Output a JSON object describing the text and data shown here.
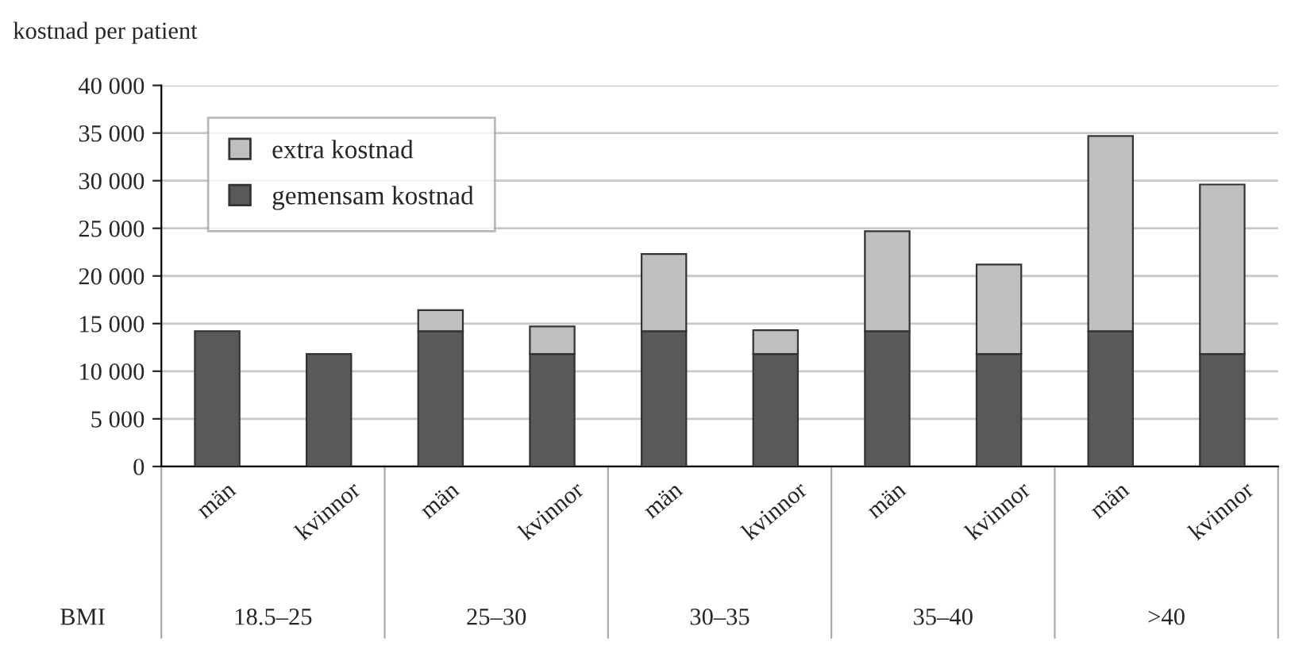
{
  "chart_data": {
    "type": "bar",
    "stacked": true,
    "ylabel": "kostnad per patient",
    "categories": [
      "män",
      "kvinnor",
      "män",
      "kvinnor",
      "män",
      "kvinnor",
      "män",
      "kvinnor",
      "män",
      "kvinnor"
    ],
    "series": [
      {
        "name": "gemensam kostnad",
        "color": "#595959",
        "values": [
          14200,
          11800,
          14200,
          11800,
          14200,
          11800,
          14200,
          11800,
          14200,
          11800
        ]
      },
      {
        "name": "extra kostnad",
        "color": "#bfbfbf",
        "values": [
          null,
          null,
          2200,
          2900,
          8100,
          2500,
          10500,
          9400,
          20500,
          17800
        ]
      }
    ],
    "ylim": [
      0,
      40000
    ],
    "yticks": [
      0,
      {
        "value": 5000,
        "label": "5 000"
      },
      {
        "value": 10000,
        "label": "10 000"
      },
      {
        "value": 15000,
        "label": "15 000"
      },
      {
        "value": 20000,
        "label": "20 000"
      },
      {
        "value": 25000,
        "label": "25 000"
      },
      {
        "value": 30000,
        "label": "30 000"
      },
      {
        "value": 35000,
        "label": "35 000"
      },
      {
        "value": 40000,
        "label": "40 000"
      }
    ],
    "grid": "y",
    "legend": "top left",
    "annotations": [
      "BMI",
      "18.5–25",
      "25–30",
      "30–35",
      "35–40",
      ">40"
    ]
  }
}
